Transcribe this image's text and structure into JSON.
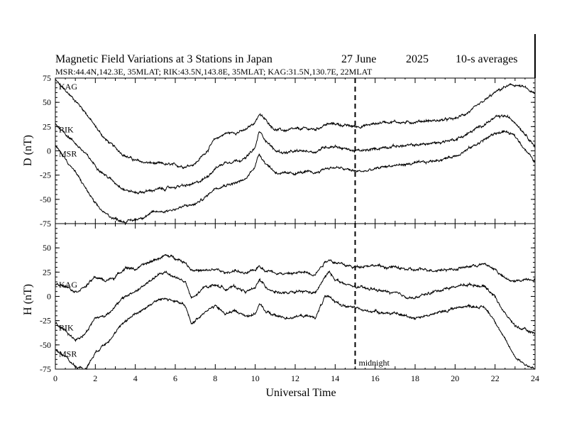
{
  "header": {
    "title_main": "Magnetic Field Variations at 3 Stations in Japan",
    "date_text": "27 June",
    "year_text": "2025",
    "avg_text": "10-s averages",
    "subtitle": "MSR:44.4N,142.3E, 35MLAT;   RIK:43.5N,143.8E, 35MLAT;   KAG:31.5N,130.7E, 22MLAT"
  },
  "chart_data": [
    {
      "type": "line",
      "panel": "D",
      "ylabel": "D (nT)",
      "ylim": [
        -75,
        75
      ],
      "yticks": [
        "75",
        "50",
        "25",
        "0",
        "-25",
        "-50",
        "-75"
      ],
      "xlim": [
        0,
        24
      ],
      "grid": false,
      "series": [
        {
          "name": "KAG",
          "x": [
            0,
            0.5,
            1,
            1.5,
            2,
            2.5,
            3,
            3.5,
            4,
            4.5,
            5,
            5.5,
            6,
            6.5,
            7,
            7.5,
            8,
            8.5,
            9,
            9.5,
            10,
            10.2,
            10.5,
            11,
            11.5,
            12,
            12.5,
            13,
            13.5,
            14,
            14.5,
            15,
            15.5,
            16,
            16.5,
            17,
            17.5,
            18,
            18.5,
            19,
            19.5,
            20,
            20.5,
            21,
            21.5,
            22,
            22.5,
            23,
            23.5,
            24
          ],
          "y": [
            73,
            62,
            52,
            40,
            25,
            12,
            3,
            -5,
            -10,
            -12,
            -13,
            -14,
            -15,
            -16,
            -13,
            -2,
            12,
            18,
            19,
            21,
            30,
            38,
            32,
            22,
            21,
            22,
            23,
            22,
            27,
            28,
            26,
            25,
            26,
            28,
            30,
            30,
            29,
            30,
            31,
            31,
            32,
            33,
            38,
            44,
            52,
            60,
            66,
            68,
            65,
            58
          ]
        },
        {
          "name": "RIK",
          "x": [
            0,
            0.5,
            1,
            1.5,
            2,
            2.5,
            3,
            3.5,
            4,
            4.5,
            5,
            5.5,
            6,
            6.5,
            7,
            7.5,
            8,
            8.5,
            9,
            9.5,
            10,
            10.2,
            10.5,
            11,
            11.5,
            12,
            12.5,
            13,
            13.5,
            14,
            14.5,
            15,
            15.5,
            16,
            16.5,
            17,
            17.5,
            18,
            18.5,
            19,
            19.5,
            20,
            20.5,
            21,
            21.5,
            22,
            22.5,
            23,
            23.5,
            24
          ],
          "y": [
            28,
            18,
            8,
            -3,
            -15,
            -25,
            -33,
            -40,
            -43,
            -42,
            -40,
            -39,
            -37,
            -36,
            -34,
            -28,
            -18,
            -12,
            -10,
            -8,
            3,
            20,
            12,
            0,
            -2,
            -1,
            0,
            -1,
            4,
            5,
            2,
            0,
            0,
            2,
            4,
            5,
            5,
            6,
            7,
            8,
            10,
            12,
            16,
            22,
            28,
            34,
            36,
            30,
            18,
            5
          ]
        },
        {
          "name": "MSR",
          "x": [
            0,
            0.5,
            1,
            1.5,
            2,
            2.5,
            3,
            3.5,
            4,
            4.5,
            5,
            5.5,
            6,
            6.5,
            7,
            7.5,
            8,
            8.5,
            9,
            9.5,
            10,
            10.2,
            10.5,
            11,
            11.5,
            12,
            12.5,
            13,
            13.5,
            14,
            14.5,
            15,
            15.5,
            16,
            16.5,
            17,
            17.5,
            18,
            18.5,
            19,
            19.5,
            20,
            20.5,
            21,
            21.5,
            22,
            22.5,
            23,
            23.5,
            24
          ],
          "y": [
            5,
            -8,
            -22,
            -38,
            -55,
            -65,
            -70,
            -73,
            -71,
            -67,
            -63,
            -62,
            -60,
            -57,
            -55,
            -48,
            -38,
            -35,
            -33,
            -30,
            -15,
            -3,
            -12,
            -22,
            -24,
            -23,
            -22,
            -23,
            -18,
            -17,
            -19,
            -21,
            -21,
            -19,
            -16,
            -15,
            -14,
            -13,
            -12,
            -10,
            -8,
            -5,
            0,
            6,
            12,
            18,
            20,
            15,
            2,
            -12
          ]
        }
      ]
    },
    {
      "type": "line",
      "panel": "H",
      "ylabel": "H (nT)",
      "ylim": [
        -75,
        75
      ],
      "yticks": [
        "50",
        "25",
        "0",
        "-25",
        "-50",
        "-75"
      ],
      "xlim": [
        0,
        24
      ],
      "xticks": [
        "0",
        "2",
        "4",
        "6",
        "8",
        "10",
        "12",
        "14",
        "16",
        "18",
        "20",
        "22",
        "24"
      ],
      "xlabel": "Universal Time",
      "grid": false,
      "annotation": {
        "text": "midnight",
        "x": 15
      },
      "series": [
        {
          "name": "KAG",
          "x": [
            0,
            0.5,
            1,
            1.5,
            2,
            2.5,
            3,
            3.5,
            4,
            4.5,
            5,
            5.5,
            6,
            6.5,
            6.8,
            7,
            7.5,
            8,
            8.5,
            9,
            9.5,
            10,
            10.2,
            10.5,
            11,
            11.5,
            12,
            12.5,
            13,
            13.5,
            13.7,
            14,
            14.5,
            15,
            15.5,
            16,
            16.5,
            17,
            17.5,
            18,
            18.5,
            19,
            19.5,
            20,
            20.5,
            21,
            21.5,
            22,
            22.5,
            23,
            23.5,
            24
          ],
          "y": [
            12,
            12,
            5,
            10,
            20,
            16,
            20,
            30,
            28,
            33,
            38,
            42,
            40,
            35,
            28,
            27,
            26,
            28,
            24,
            27,
            23,
            27,
            32,
            27,
            25,
            23,
            24,
            25,
            23,
            36,
            38,
            35,
            32,
            30,
            32,
            32,
            30,
            30,
            28,
            27,
            28,
            27,
            28,
            28,
            30,
            32,
            33,
            28,
            18,
            15,
            18,
            18
          ]
        },
        {
          "name": "RIK",
          "x": [
            0,
            0.5,
            1,
            1.5,
            2,
            2.5,
            3,
            3.5,
            4,
            4.5,
            5,
            5.5,
            6,
            6.5,
            6.8,
            7,
            7.5,
            8,
            8.5,
            9,
            9.5,
            10,
            10.2,
            10.5,
            11,
            11.5,
            12,
            12.5,
            13,
            13.5,
            13.7,
            14,
            14.5,
            15,
            15.5,
            16,
            16.5,
            17,
            17.5,
            18,
            18.5,
            19,
            19.5,
            20,
            20.5,
            21,
            21.5,
            22,
            22.5,
            23,
            23.5,
            24
          ],
          "y": [
            -28,
            -35,
            -45,
            -38,
            -22,
            -20,
            -10,
            0,
            5,
            12,
            20,
            25,
            20,
            15,
            -2,
            0,
            10,
            12,
            8,
            10,
            5,
            8,
            18,
            10,
            5,
            3,
            4,
            5,
            3,
            20,
            25,
            18,
            12,
            10,
            8,
            7,
            5,
            3,
            0,
            -2,
            2,
            5,
            8,
            10,
            12,
            12,
            10,
            0,
            -18,
            -30,
            -35,
            -38
          ]
        },
        {
          "name": "MSR",
          "x": [
            0,
            0.5,
            1,
            1.5,
            2,
            2.5,
            3,
            3.5,
            4,
            4.5,
            5,
            5.5,
            6,
            6.5,
            6.8,
            7,
            7.5,
            8,
            8.5,
            9,
            9.5,
            10,
            10.2,
            10.5,
            11,
            11.5,
            12,
            12.5,
            13,
            13.5,
            13.7,
            14,
            14.5,
            15,
            15.5,
            16,
            16.5,
            17,
            17.5,
            18,
            18.5,
            19,
            19.5,
            20,
            20.5,
            21,
            21.5,
            22,
            22.5,
            23,
            23.5,
            24
          ],
          "y": [
            -55,
            -62,
            -72,
            -75,
            -58,
            -48,
            -38,
            -25,
            -18,
            -12,
            -5,
            -2,
            -5,
            -10,
            -28,
            -25,
            -15,
            -10,
            -18,
            -15,
            -20,
            -18,
            -8,
            -15,
            -20,
            -22,
            -21,
            -20,
            -22,
            0,
            -2,
            -5,
            -10,
            -12,
            -15,
            -15,
            -17,
            -18,
            -20,
            -22,
            -20,
            -18,
            -15,
            -12,
            -10,
            -10,
            -12,
            -25,
            -45,
            -62,
            -70,
            -75
          ]
        }
      ]
    }
  ]
}
